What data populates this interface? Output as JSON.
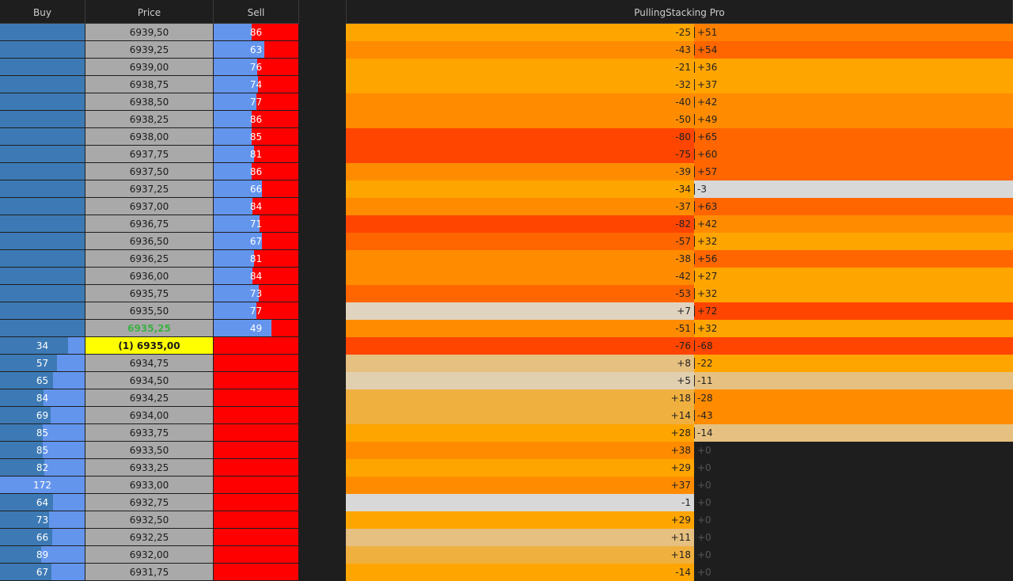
{
  "header": {
    "buy": "Buy",
    "price": "Price",
    "sell": "Sell",
    "indicator": "PullingStacking Pro"
  },
  "rows": [
    {
      "price": "6939,50",
      "sell": 86,
      "pull": "-25",
      "stack": "+51",
      "pull_color": "#ffa500",
      "stack_color": "#ff8000"
    },
    {
      "price": "6939,25",
      "sell": 63,
      "pull": "-43",
      "stack": "+54",
      "pull_color": "#ff8c00",
      "stack_color": "#ff6600"
    },
    {
      "price": "6939,00",
      "sell": 76,
      "pull": "-21",
      "stack": "+36",
      "pull_color": "#ffa500",
      "stack_color": "#ffa500"
    },
    {
      "price": "6938,75",
      "sell": 74,
      "pull": "-32",
      "stack": "+37",
      "pull_color": "#ffa500",
      "stack_color": "#ffa500"
    },
    {
      "price": "6938,50",
      "sell": 77,
      "pull": "-40",
      "stack": "+42",
      "pull_color": "#ff8c00",
      "stack_color": "#ff8c00"
    },
    {
      "price": "6938,25",
      "sell": 86,
      "pull": "-50",
      "stack": "+49",
      "pull_color": "#ff8c00",
      "stack_color": "#ff8c00"
    },
    {
      "price": "6938,00",
      "sell": 85,
      "pull": "-80",
      "stack": "+65",
      "pull_color": "#ff4500",
      "stack_color": "#ff6600"
    },
    {
      "price": "6937,75",
      "sell": 81,
      "pull": "-75",
      "stack": "+60",
      "pull_color": "#ff4500",
      "stack_color": "#ff6600"
    },
    {
      "price": "6937,50",
      "sell": 86,
      "pull": "-39",
      "stack": "+57",
      "pull_color": "#ff8c00",
      "stack_color": "#ff6600"
    },
    {
      "price": "6937,25",
      "sell": 66,
      "pull": "-34",
      "stack": "-3",
      "pull_color": "#ffa500",
      "stack_color": "#d8d8d8"
    },
    {
      "price": "6937,00",
      "sell": 84,
      "pull": "-37",
      "stack": "+63",
      "pull_color": "#ff8c00",
      "stack_color": "#ff6600"
    },
    {
      "price": "6936,75",
      "sell": 71,
      "pull": "-82",
      "stack": "+42",
      "pull_color": "#ff4500",
      "stack_color": "#ff8c00"
    },
    {
      "price": "6936,50",
      "sell": 67,
      "pull": "-57",
      "stack": "+32",
      "pull_color": "#ff6600",
      "stack_color": "#ffa500"
    },
    {
      "price": "6936,25",
      "sell": 81,
      "pull": "-38",
      "stack": "+56",
      "pull_color": "#ff8c00",
      "stack_color": "#ff6600"
    },
    {
      "price": "6936,00",
      "sell": 84,
      "pull": "-42",
      "stack": "+27",
      "pull_color": "#ff8c00",
      "stack_color": "#ffa500"
    },
    {
      "price": "6935,75",
      "sell": 73,
      "pull": "-53",
      "stack": "+32",
      "pull_color": "#ff6600",
      "stack_color": "#ffa500"
    },
    {
      "price": "6935,50",
      "sell": 77,
      "pull": "+7",
      "stack": "+72",
      "pull_color": "#e0d4c0",
      "stack_color": "#ff4500"
    },
    {
      "price": "6935,25",
      "price_color": "#3cb043",
      "sell": 49,
      "pull": "-51",
      "stack": "+32",
      "pull_color": "#ff8c00",
      "stack_color": "#ffa500"
    },
    {
      "buy": 34,
      "price": "(1) 6935,00",
      "highlight": "#ffff00",
      "pull": "-76",
      "stack": "-68",
      "pull_color": "#ff4500",
      "stack_color": "#ff4500"
    },
    {
      "buy": 57,
      "price": "6934,75",
      "pull": "+8",
      "stack": "-22",
      "pull_color": "#e6c080",
      "stack_color": "#ffa500"
    },
    {
      "buy": 65,
      "price": "6934,50",
      "pull": "+5",
      "stack": "-11",
      "pull_color": "#e0d0b0",
      "stack_color": "#e6c080"
    },
    {
      "buy": 84,
      "price": "6934,25",
      "pull": "+18",
      "stack": "-28",
      "pull_color": "#f0b040",
      "stack_color": "#ff8c00"
    },
    {
      "buy": 69,
      "price": "6934,00",
      "pull": "+14",
      "stack": "-43",
      "pull_color": "#f0b040",
      "stack_color": "#ff8c00"
    },
    {
      "buy": 85,
      "price": "6933,75",
      "pull": "+28",
      "stack": "-14",
      "pull_color": "#ffa500",
      "stack_color": "#e6c080"
    },
    {
      "buy": 85,
      "price": "6933,50",
      "pull": "+38",
      "stack": "+0",
      "pull_color": "#ff8c00"
    },
    {
      "buy": 82,
      "price": "6933,25",
      "pull": "+29",
      "stack": "+0",
      "pull_color": "#ffa500"
    },
    {
      "buy": 172,
      "price": "6933,00",
      "pull": "+37",
      "stack": "+0",
      "pull_color": "#ff8c00"
    },
    {
      "buy": 64,
      "price": "6932,75",
      "pull": "-1",
      "stack": "+0",
      "pull_color": "#d8d8d8"
    },
    {
      "buy": 73,
      "price": "6932,50",
      "pull": "+29",
      "stack": "+0",
      "pull_color": "#ffa500"
    },
    {
      "buy": 66,
      "price": "6932,25",
      "pull": "+11",
      "stack": "+0",
      "pull_color": "#e6c080"
    },
    {
      "buy": 89,
      "price": "6932,00",
      "pull": "+18",
      "stack": "+0",
      "pull_color": "#f0b040"
    },
    {
      "buy": 67,
      "price": "6931,75",
      "pull": "-14",
      "stack": "+0",
      "pull_color": "#ffa500"
    }
  ]
}
